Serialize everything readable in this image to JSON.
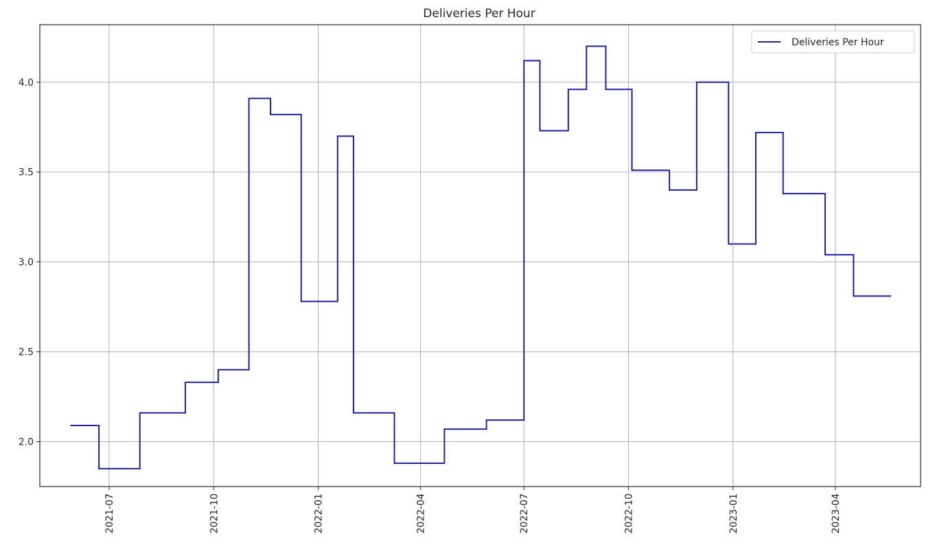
{
  "chart_data": {
    "type": "line",
    "title": "Deliveries Per Hour",
    "xlabel": "",
    "ylabel": "",
    "x_type": "date",
    "x_ticks": [
      "2021-07",
      "2021-10",
      "2022-01",
      "2022-04",
      "2022-07",
      "2022-10",
      "2023-01",
      "2023-04"
    ],
    "y_ticks": [
      "2.0",
      "2.5",
      "3.0",
      "3.5",
      "4.0"
    ],
    "xlim": [
      "2021-05-01",
      "2023-06-15"
    ],
    "ylim": [
      1.75,
      4.32
    ],
    "grid": true,
    "legend_position": "top-right",
    "series": [
      {
        "name": "Deliveries Per Hour",
        "color": "#1f1fa0",
        "step": "post",
        "points": [
          [
            "2021-05-28",
            2.09
          ],
          [
            "2021-06-22",
            1.85
          ],
          [
            "2021-07-28",
            2.16
          ],
          [
            "2021-09-06",
            2.33
          ],
          [
            "2021-10-05",
            2.4
          ],
          [
            "2021-11-01",
            3.91
          ],
          [
            "2021-11-20",
            3.82
          ],
          [
            "2021-12-17",
            2.78
          ],
          [
            "2022-01-18",
            3.7
          ],
          [
            "2022-02-01",
            2.16
          ],
          [
            "2022-03-09",
            1.88
          ],
          [
            "2022-04-22",
            2.07
          ],
          [
            "2022-05-29",
            2.12
          ],
          [
            "2022-07-01",
            4.12
          ],
          [
            "2022-07-15",
            3.73
          ],
          [
            "2022-08-09",
            3.96
          ],
          [
            "2022-08-25",
            4.2
          ],
          [
            "2022-09-11",
            3.96
          ],
          [
            "2022-10-04",
            3.51
          ],
          [
            "2022-11-06",
            3.4
          ],
          [
            "2022-11-30",
            4.0
          ],
          [
            "2022-12-28",
            3.1
          ],
          [
            "2023-01-21",
            3.72
          ],
          [
            "2023-02-14",
            3.38
          ],
          [
            "2023-03-23",
            3.04
          ],
          [
            "2023-04-17",
            2.81
          ],
          [
            "2023-05-20",
            2.81
          ]
        ]
      }
    ]
  }
}
